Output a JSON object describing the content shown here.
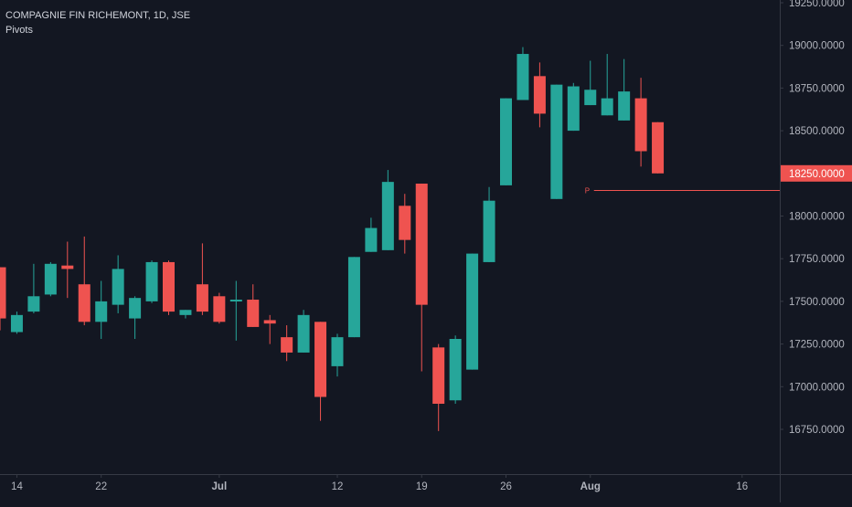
{
  "legend": {
    "symbol_line": "COMPAGNIE FIN RICHEMONT, 1D, JSE",
    "indicator": "Pivots"
  },
  "colors": {
    "background": "#131722",
    "up": "#26a69a",
    "down": "#ef5350",
    "axis_line": "#363a45",
    "axis_text": "#b2b5be",
    "last_price_bg": "#ef5350",
    "pivot": "#ef5350"
  },
  "chart_data": {
    "type": "candlestick",
    "y_axis_position": "right",
    "ylim": [
      16500,
      19350
    ],
    "y_ticks": [
      "16750.0000",
      "17000.0000",
      "17250.0000",
      "17500.0000",
      "17750.0000",
      "18000.0000",
      "18250.0000",
      "18500.0000",
      "18750.0000",
      "19000.0000",
      "19250.0000"
    ],
    "x_ticks": [
      {
        "label": "14",
        "index": 1
      },
      {
        "label": "22",
        "index": 6
      },
      {
        "label": "Jul",
        "index": 13
      },
      {
        "label": "12",
        "index": 20
      },
      {
        "label": "19",
        "index": 25
      },
      {
        "label": "26",
        "index": 30
      },
      {
        "label": "Aug",
        "index": 35
      },
      {
        "label": "16",
        "index": 44
      }
    ],
    "last_price_label": "18250.0000",
    "pivot": {
      "label": "P",
      "value": 18150,
      "from_index": 35
    },
    "candles": [
      {
        "o": 17700,
        "h": 17700,
        "l": 17330,
        "c": 17400
      },
      {
        "o": 17320,
        "h": 17440,
        "l": 17310,
        "c": 17420
      },
      {
        "o": 17440,
        "h": 17720,
        "l": 17430,
        "c": 17530
      },
      {
        "o": 17540,
        "h": 17730,
        "l": 17530,
        "c": 17720
      },
      {
        "o": 17710,
        "h": 17850,
        "l": 17520,
        "c": 17690
      },
      {
        "o": 17600,
        "h": 17880,
        "l": 17360,
        "c": 17380
      },
      {
        "o": 17380,
        "h": 17620,
        "l": 17280,
        "c": 17500
      },
      {
        "o": 17480,
        "h": 17770,
        "l": 17430,
        "c": 17690
      },
      {
        "o": 17400,
        "h": 17530,
        "l": 17280,
        "c": 17520
      },
      {
        "o": 17500,
        "h": 17740,
        "l": 17490,
        "c": 17730
      },
      {
        "o": 17730,
        "h": 17740,
        "l": 17420,
        "c": 17440
      },
      {
        "o": 17420,
        "h": 17450,
        "l": 17400,
        "c": 17450
      },
      {
        "o": 17600,
        "h": 17840,
        "l": 17420,
        "c": 17440
      },
      {
        "o": 17530,
        "h": 17550,
        "l": 17370,
        "c": 17380
      },
      {
        "o": 17510,
        "h": 17620,
        "l": 17270,
        "c": 17510
      },
      {
        "o": 17510,
        "h": 17600,
        "l": 17350,
        "c": 17350
      },
      {
        "o": 17390,
        "h": 17420,
        "l": 17250,
        "c": 17370
      },
      {
        "o": 17290,
        "h": 17360,
        "l": 17150,
        "c": 17200
      },
      {
        "o": 17200,
        "h": 17450,
        "l": 17200,
        "c": 17420
      },
      {
        "o": 17380,
        "h": 17380,
        "l": 16800,
        "c": 16940
      },
      {
        "o": 17120,
        "h": 17310,
        "l": 17060,
        "c": 17290
      },
      {
        "o": 17290,
        "h": 17760,
        "l": 17290,
        "c": 17760
      },
      {
        "o": 17790,
        "h": 17990,
        "l": 17790,
        "c": 17930
      },
      {
        "o": 17800,
        "h": 18270,
        "l": 17800,
        "c": 18200
      },
      {
        "o": 18060,
        "h": 18130,
        "l": 17780,
        "c": 17860
      },
      {
        "o": 18190,
        "h": 18190,
        "l": 17090,
        "c": 17480
      },
      {
        "o": 17230,
        "h": 17250,
        "l": 16740,
        "c": 16900
      },
      {
        "o": 16920,
        "h": 17300,
        "l": 16900,
        "c": 17280
      },
      {
        "o": 17100,
        "h": 17780,
        "l": 17100,
        "c": 17780
      },
      {
        "o": 17730,
        "h": 18170,
        "l": 17730,
        "c": 18090
      },
      {
        "o": 18180,
        "h": 18690,
        "l": 18180,
        "c": 18690
      },
      {
        "o": 18680,
        "h": 18990,
        "l": 18680,
        "c": 18950
      },
      {
        "o": 18820,
        "h": 18900,
        "l": 18520,
        "c": 18600
      },
      {
        "o": 18100,
        "h": 18770,
        "l": 18100,
        "c": 18770
      },
      {
        "o": 18500,
        "h": 18780,
        "l": 18500,
        "c": 18760
      },
      {
        "o": 18650,
        "h": 18910,
        "l": 18650,
        "c": 18740
      },
      {
        "o": 18590,
        "h": 18950,
        "l": 18590,
        "c": 18690
      },
      {
        "o": 18560,
        "h": 18920,
        "l": 18560,
        "c": 18730
      },
      {
        "o": 18690,
        "h": 18810,
        "l": 18290,
        "c": 18380
      },
      {
        "o": 18550,
        "h": 18550,
        "l": 18250,
        "c": 18250
      }
    ]
  }
}
